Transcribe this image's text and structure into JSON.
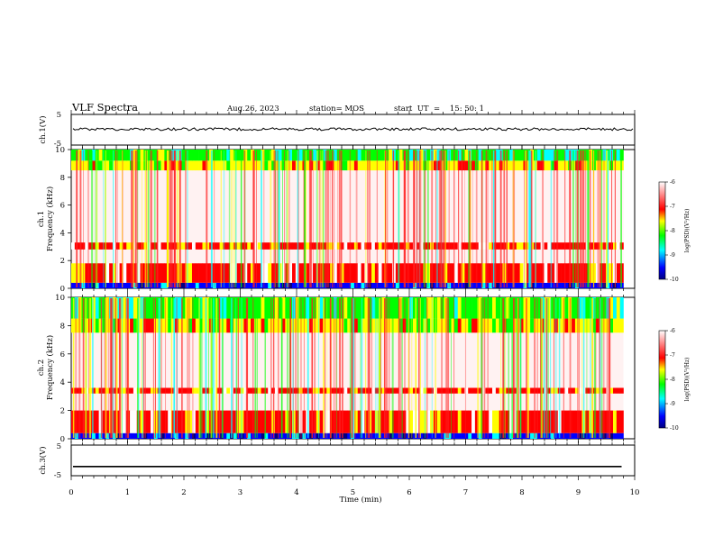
{
  "header": {
    "title": "VLF Spectra",
    "date": "Aug.26, 2023",
    "station": "station= MOS",
    "start": "start  UT  =    15: 50: 1"
  },
  "chart_data": [
    {
      "type": "line",
      "name": "ch1-waveform",
      "ylabel": "ch.1(V)",
      "ylim": [
        -5,
        5
      ],
      "y_ticks": [
        "5",
        "-5"
      ],
      "xlim": [
        0,
        10
      ],
      "level": 0.2
    },
    {
      "type": "heatmap",
      "name": "ch1-spectrogram",
      "ylabel_top": "ch.1",
      "ylabel": "Frequency (kHz)",
      "ylim": [
        0,
        10
      ],
      "y_ticks": [
        "0",
        "2",
        "4",
        "6",
        "8",
        "10"
      ],
      "xlim": [
        0,
        9.8
      ],
      "colorbar": {
        "label": "log(PSD)(V²/Hz)",
        "range": [
          -10,
          -6
        ],
        "ticks": [
          "-6",
          "-7",
          "-8",
          "-9",
          "-10"
        ],
        "colors": [
          "#000080",
          "#0000ff",
          "#00ffff",
          "#00ff00",
          "#ffff00",
          "#ff0000",
          "#ffffff"
        ]
      },
      "bands_khz": [
        {
          "from": 0,
          "to": 0.4,
          "level": "very-low"
        },
        {
          "from": 0.4,
          "to": 1.8,
          "level": "high"
        },
        {
          "from": 2.8,
          "to": 3.3,
          "level": "high"
        },
        {
          "from": 8.5,
          "to": 9.2,
          "level": "medium"
        },
        {
          "from": 9.2,
          "to": 10,
          "level": "low"
        }
      ]
    },
    {
      "type": "heatmap",
      "name": "ch2-spectrogram",
      "ylabel_top": "ch.2",
      "ylabel": "Frequency (kHz)",
      "ylim": [
        0,
        10
      ],
      "y_ticks": [
        "0",
        "2",
        "4",
        "6",
        "8",
        "10"
      ],
      "xlim": [
        0,
        9.8
      ],
      "colorbar": {
        "label": "log(PSD)(V²/Hz)",
        "range": [
          -10,
          -6
        ],
        "ticks": [
          "-6",
          "-7",
          "-8",
          "-9",
          "-10"
        ],
        "colors": [
          "#000080",
          "#0000ff",
          "#00ffff",
          "#00ff00",
          "#ffff00",
          "#ff0000",
          "#ffffff"
        ]
      },
      "bands_khz": [
        {
          "from": 0,
          "to": 0.4,
          "level": "very-low"
        },
        {
          "from": 0.4,
          "to": 2.0,
          "level": "high"
        },
        {
          "from": 3.2,
          "to": 3.6,
          "level": "high"
        },
        {
          "from": 7.5,
          "to": 8.5,
          "level": "medium"
        },
        {
          "from": 8.5,
          "to": 10,
          "level": "low"
        }
      ]
    },
    {
      "type": "line",
      "name": "ch3-waveform",
      "ylabel": "ch.3(V)",
      "ylim": [
        -5,
        5
      ],
      "y_ticks": [
        "5",
        "-5"
      ],
      "xlim": [
        0,
        9.8
      ],
      "level": -2
    }
  ],
  "x_axis": {
    "label": "Time (min)",
    "range": [
      0,
      10
    ],
    "ticks": [
      "0",
      "1",
      "2",
      "3",
      "4",
      "5",
      "6",
      "7",
      "8",
      "9",
      "10"
    ]
  }
}
